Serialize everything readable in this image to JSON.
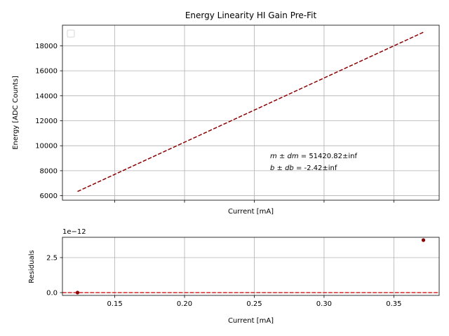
{
  "chart_data": [
    {
      "type": "line",
      "title": "Energy Linearity HI Gain Pre-Fit",
      "xlabel": "Current [mA]",
      "ylabel": "Energy [ADC Counts]",
      "xlim": [
        0.1125,
        0.3825
      ],
      "ylim": [
        5640,
        19650
      ],
      "grid": true,
      "legend": "top-left, empty",
      "x_ticks": [
        0.15,
        0.2,
        0.25,
        0.3,
        0.35
      ],
      "x_tick_labels_visible": false,
      "y_ticks": [
        6000,
        8000,
        10000,
        12000,
        14000,
        16000,
        18000
      ],
      "y_tick_labels": [
        "6000",
        "8000",
        "10000",
        "12000",
        "14000",
        "16000",
        "18000"
      ],
      "series": [
        {
          "style": "dashed",
          "color": "#8b0000",
          "x": [
            0.1233,
            0.3712
          ],
          "y": [
            6337,
            19086
          ]
        }
      ],
      "annotations": [
        {
          "math": "m ± dm",
          "text": " = 51420.82±inf"
        },
        {
          "math": "b ± db",
          "text": " = -2.42±inf"
        }
      ]
    },
    {
      "type": "scatter",
      "ylabel": "Residuals",
      "xlabel": "Current [mA]",
      "offset_text": "1e−12",
      "xlim": [
        0.1125,
        0.3825
      ],
      "ylim": [
        -0.2,
        3.95
      ],
      "grid": true,
      "x_ticks": [
        0.15,
        0.2,
        0.25,
        0.3,
        0.35
      ],
      "x_tick_labels": [
        "0.15",
        "0.20",
        "0.25",
        "0.30",
        "0.35"
      ],
      "y_ticks": [
        0.0,
        2.5
      ],
      "y_tick_labels": [
        "0.0",
        "2.5"
      ],
      "points": {
        "color": "#8b0000",
        "x": [
          0.1233,
          0.3712
        ],
        "y": [
          0.0,
          3.75
        ]
      },
      "reference_line": {
        "y": 0,
        "style": "dashed",
        "color": "#d62728"
      }
    }
  ]
}
